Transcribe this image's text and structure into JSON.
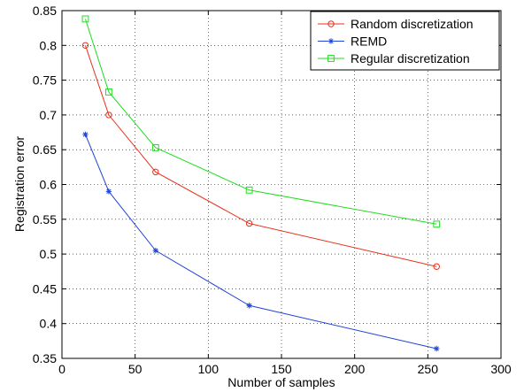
{
  "chart_data": {
    "type": "line",
    "title": "",
    "xlabel": "Number of samples",
    "ylabel": "Registration error",
    "xlim": [
      0,
      300
    ],
    "ylim": [
      0.35,
      0.85
    ],
    "xticks": [
      0,
      50,
      100,
      150,
      200,
      250,
      300
    ],
    "yticks": [
      0.35,
      0.4,
      0.45,
      0.5,
      0.55,
      0.6,
      0.65,
      0.7,
      0.75,
      0.8,
      0.85
    ],
    "x": [
      16,
      32,
      64,
      128,
      256
    ],
    "grid": true,
    "legend_position": "top-right",
    "series": [
      {
        "name": "Random discretization",
        "color": "#e8321e",
        "marker": "circle",
        "values": [
          0.8,
          0.7,
          0.618,
          0.544,
          0.482
        ]
      },
      {
        "name": "REMD",
        "color": "#1f45d6",
        "marker": "star",
        "values": [
          0.672,
          0.59,
          0.505,
          0.426,
          0.364
        ]
      },
      {
        "name": "Regular discretization",
        "color": "#22dd22",
        "marker": "square",
        "values": [
          0.838,
          0.733,
          0.653,
          0.592,
          0.543
        ]
      }
    ]
  }
}
